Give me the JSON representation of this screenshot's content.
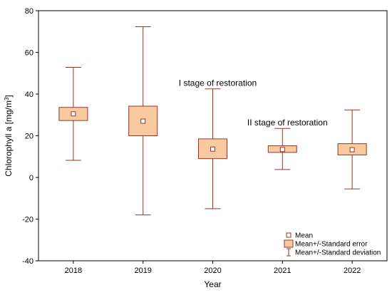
{
  "chart_data": {
    "type": "box",
    "xlabel": "Year",
    "ylabel": "Chlorophyll a [mg/m",
    "ylabel_sup": "3",
    "ylabel_close": "]",
    "ylim": [
      -40,
      80
    ],
    "yticks": [
      -40,
      -20,
      0,
      20,
      40,
      60,
      80
    ],
    "categories": [
      "2018",
      "2019",
      "2020",
      "2021",
      "2022"
    ],
    "series": [
      {
        "category": "2018",
        "mean": 30.5,
        "se_low": 27.3,
        "se_high": 33.6,
        "sd_low": 8.2,
        "sd_high": 52.8
      },
      {
        "category": "2019",
        "mean": 27.0,
        "se_low": 20.0,
        "se_high": 34.2,
        "sd_low": -18.0,
        "sd_high": 72.3
      },
      {
        "category": "2020",
        "mean": 13.6,
        "se_low": 9.0,
        "se_high": 18.5,
        "sd_low": -15.0,
        "sd_high": 42.5
      },
      {
        "category": "2021",
        "mean": 13.4,
        "se_low": 12.0,
        "se_high": 15.2,
        "sd_low": 3.8,
        "sd_high": 23.5
      },
      {
        "category": "2022",
        "mean": 13.3,
        "se_low": 10.8,
        "se_high": 16.2,
        "sd_low": -5.5,
        "sd_high": 32.4
      }
    ],
    "annotations": [
      {
        "text": "I stage of restoration",
        "x": "2020",
        "y": 44
      },
      {
        "text": "II stage of restoration",
        "x": "2021",
        "y": 25
      }
    ],
    "legend": {
      "position": "bottom-right",
      "items": [
        {
          "label": "Mean",
          "symbol": "point"
        },
        {
          "label": "Mean+/-Standard error",
          "symbol": "box"
        },
        {
          "label": "Mean+/-Standard deviation",
          "symbol": "whisker"
        }
      ]
    },
    "colors": {
      "box_fill": "#f9c9a0",
      "box_stroke": "#8b3a2e",
      "whisker": "#8b3a2e",
      "mean_marker": "#8b3a2e",
      "axis": "#000000"
    },
    "grid": false
  }
}
